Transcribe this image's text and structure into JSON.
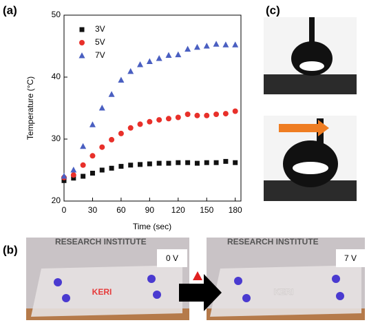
{
  "chart_data": {
    "type": "scatter",
    "x_label": "Time (sec)",
    "y_label": "Temperature (°C)",
    "x": [
      0,
      10,
      20,
      30,
      40,
      50,
      60,
      70,
      80,
      90,
      100,
      110,
      120,
      130,
      140,
      150,
      160,
      170,
      180
    ],
    "series": [
      {
        "name": "3V",
        "color": "#111111",
        "marker": "square",
        "values": [
          23.3,
          23.7,
          24.0,
          24.5,
          25.0,
          25.3,
          25.6,
          25.8,
          25.9,
          26.0,
          26.1,
          26.1,
          26.2,
          26.2,
          26.1,
          26.2,
          26.2,
          26.4,
          26.2
        ]
      },
      {
        "name": "5V",
        "color": "#e8302a",
        "marker": "circle",
        "values": [
          23.8,
          24.2,
          25.8,
          27.3,
          28.7,
          29.9,
          30.9,
          31.8,
          32.4,
          32.8,
          33.1,
          33.3,
          33.5,
          34.0,
          33.8,
          33.8,
          34.0,
          34.1,
          34.5
        ]
      },
      {
        "name": "7V",
        "color": "#4a5fc1",
        "marker": "triangle",
        "values": [
          24.0,
          25.0,
          28.8,
          32.3,
          35.0,
          37.2,
          39.5,
          40.9,
          42.0,
          42.5,
          43.0,
          43.5,
          43.6,
          44.5,
          44.8,
          45.0,
          45.3,
          45.2,
          45.2
        ]
      }
    ],
    "xlim": [
      0,
      186
    ],
    "xticks": [
      0,
      30,
      60,
      90,
      120,
      150,
      180
    ],
    "ylim": [
      20,
      50
    ],
    "yticks": [
      20,
      30,
      40,
      50
    ],
    "legend": "upper-left"
  },
  "panels": {
    "a": "(a)",
    "b": "(b)",
    "c": "(c)"
  },
  "photos": {
    "institute": "RESEARCH INSTITUTE",
    "logo": "KERI",
    "before": "0 V",
    "after": "7 V"
  }
}
